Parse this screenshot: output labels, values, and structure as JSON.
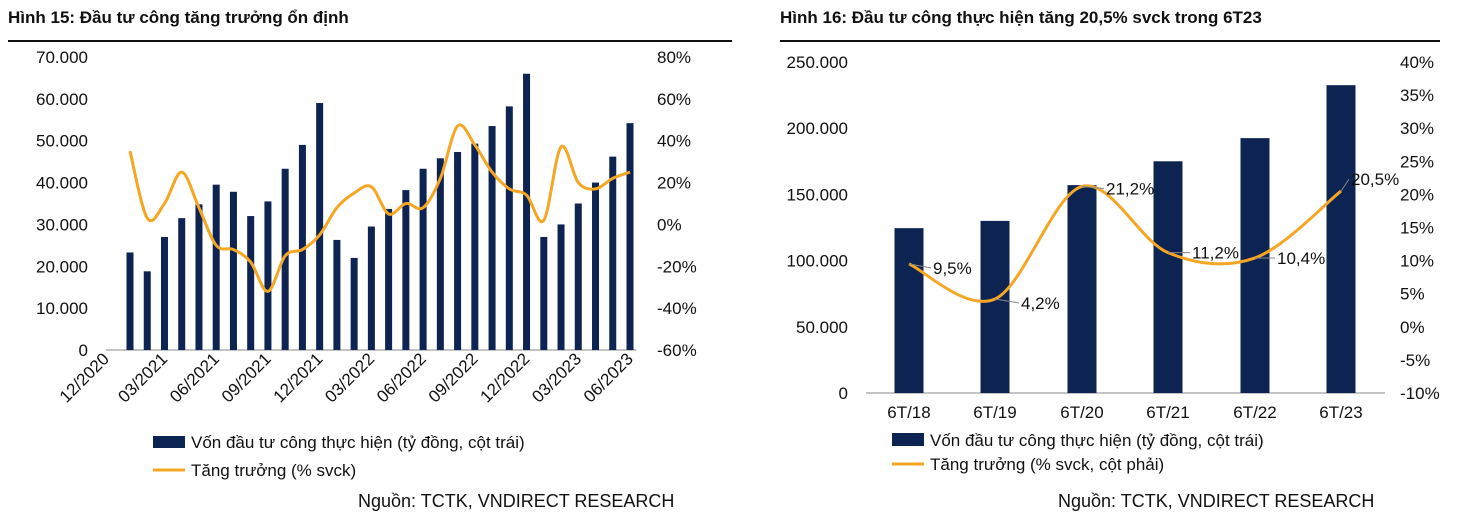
{
  "colors": {
    "bar": "#0d2352",
    "line": "#f5a623",
    "rule": "#111111"
  },
  "left": {
    "title": "Hình 15: Đầu tư công tăng trưởng ổn định",
    "source": "Nguồn: TCTK, VNDIRECT RESEARCH",
    "legend_bar": "Vốn đầu tư công thực hiện (tỷ đồng, cột trái)",
    "legend_line": "Tăng trưởng (% svck)"
  },
  "right": {
    "title": "Hình 16: Đầu tư công thực hiện tăng 20,5% svck trong 6T23",
    "source": "Nguồn:  TCTK, VNDIRECT RESEARCH",
    "legend_bar": "Vốn đầu tư công thực hiện (tỷ đồng, cột trái)",
    "legend_line": "Tăng trưởng (% svck, cột phải)"
  },
  "chart_data": [
    {
      "type": "bar",
      "combo_line": true,
      "title": "Hình 15: Đầu tư công tăng trưởng ổn định",
      "x_tick_labels": [
        "12/2020",
        "03/2021",
        "06/2021",
        "09/2021",
        "12/2021",
        "03/2022",
        "06/2022",
        "09/2022",
        "12/2022",
        "03/2023",
        "06/2023"
      ],
      "y_left_ticks": [
        "0",
        "10.000",
        "20.000",
        "30.000",
        "40.000",
        "50.000",
        "60.000",
        "70.000"
      ],
      "y_right_ticks": [
        "-60%",
        "-40%",
        "-20%",
        "0%",
        "20%",
        "40%",
        "60%",
        "80%"
      ],
      "ylim_left": [
        0,
        70000
      ],
      "ylim_right": [
        -60,
        80
      ],
      "grid": false,
      "legend_position": "bottom",
      "series": [
        {
          "name": "Vốn đầu tư công thực hiện (tỷ đồng, cột trái)",
          "type": "bar",
          "axis": "left",
          "values": [
            23300,
            18800,
            27000,
            31500,
            34800,
            39500,
            37800,
            32000,
            35500,
            43300,
            49000,
            59000,
            26300,
            22000,
            29500,
            33700,
            38200,
            43300,
            45800,
            47300,
            49300,
            53500,
            58200,
            66000,
            27000,
            30000,
            35000,
            40000,
            46200,
            54200
          ]
        },
        {
          "name": "Tăng trưởng (% svck)",
          "type": "line",
          "axis": "right",
          "values": [
            35,
            3,
            10,
            25,
            8,
            -10,
            -12,
            -18,
            -32,
            -15,
            -12,
            -5,
            8,
            15,
            18,
            5,
            10,
            8,
            22,
            47,
            38,
            25,
            17,
            14,
            2,
            37,
            20,
            17,
            22,
            25
          ]
        }
      ]
    },
    {
      "type": "bar",
      "combo_line": true,
      "title": "Hình 16: Đầu tư công thực hiện tăng 20,5% svck trong 6T23",
      "categories": [
        "6T/18",
        "6T/19",
        "6T/20",
        "6T/21",
        "6T/22",
        "6T/23"
      ],
      "y_left_ticks": [
        "0",
        "50.000",
        "100.000",
        "150.000",
        "200.000",
        "250.000"
      ],
      "y_right_ticks": [
        "-10%",
        "-5%",
        "0%",
        "5%",
        "10%",
        "15%",
        "20%",
        "25%",
        "30%",
        "35%",
        "40%"
      ],
      "ylim_left": [
        0,
        250000
      ],
      "ylim_right": [
        -10,
        40
      ],
      "grid": false,
      "legend_position": "bottom",
      "series": [
        {
          "name": "Vốn đầu tư công thực hiện (tỷ đồng, cột trái)",
          "type": "bar",
          "axis": "left",
          "values": [
            124500,
            130000,
            157000,
            175000,
            192500,
            232500
          ]
        },
        {
          "name": "Tăng trưởng (% svck, cột phải)",
          "type": "line",
          "axis": "right",
          "values": [
            9.5,
            4.2,
            21.2,
            11.2,
            10.4,
            20.5
          ],
          "data_labels": [
            "9,5%",
            "4,2%",
            "21,2%",
            "11,2%",
            "10,4%",
            "20,5%"
          ]
        }
      ]
    }
  ]
}
